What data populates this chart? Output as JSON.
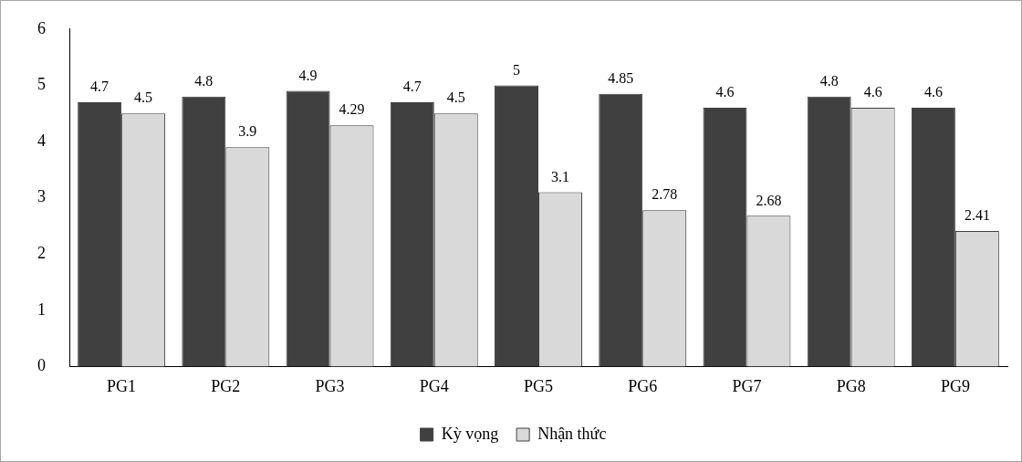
{
  "chart_data": {
    "type": "bar",
    "categories": [
      "PG1",
      "PG2",
      "PG3",
      "PG4",
      "PG5",
      "PG6",
      "PG7",
      "PG8",
      "PG9"
    ],
    "series": [
      {
        "name": "Kỳ vọng",
        "color": "#404040",
        "values": [
          4.7,
          4.8,
          4.9,
          4.7,
          5,
          4.85,
          4.6,
          4.8,
          4.6
        ]
      },
      {
        "name": "Nhận thức",
        "color": "#d9d9d9",
        "values": [
          4.5,
          3.9,
          4.29,
          4.5,
          3.1,
          2.78,
          2.68,
          4.6,
          2.41
        ]
      }
    ],
    "ylim": [
      0,
      6
    ],
    "yticks": [
      0,
      1,
      2,
      3,
      4,
      5,
      6
    ],
    "grid": false,
    "legend": "bottom",
    "data_labels": true
  }
}
